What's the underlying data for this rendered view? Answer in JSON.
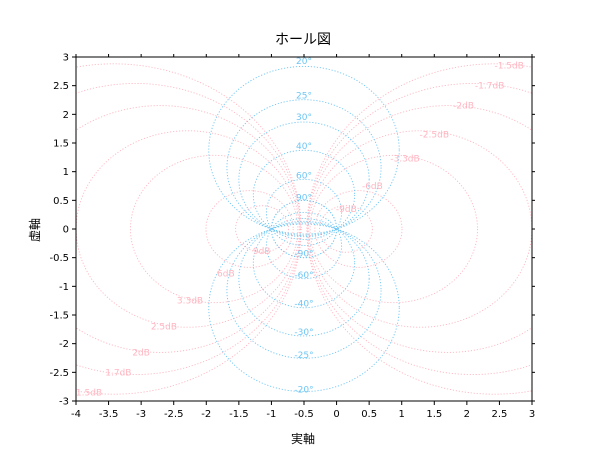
{
  "chart_data": {
    "type": "line",
    "title": "ホール図",
    "xlabel": "実軸",
    "ylabel": "虚軸",
    "xlim": [
      -4,
      3
    ],
    "ylim": [
      -3,
      3
    ],
    "x_ticks": [
      "-4",
      "-3.5",
      "-3",
      "-2.5",
      "-2",
      "-1.5",
      "-1",
      "-0.5",
      "0",
      "0.5",
      "1",
      "1.5",
      "2",
      "2.5",
      "3"
    ],
    "y_ticks": [
      "-3",
      "-2.5",
      "-2",
      "-1.5",
      "-1",
      "-0.5",
      "0",
      "0.5",
      "1",
      "1.5",
      "2",
      "2.5",
      "3"
    ],
    "grid": false,
    "m_circles": {
      "color": "#ffb6c1",
      "gains_db": [
        -1.5,
        -1.7,
        -2,
        -2.5,
        -3.3,
        -6,
        -9,
        9,
        6,
        3.3,
        2.5,
        2,
        1.7,
        1.5
      ],
      "labels_upper": [
        "-1.5dB",
        "-1.7dB",
        "-2dB",
        "-2.5dB",
        "-3.3dB",
        "-6dB",
        "-9dB"
      ],
      "labels_lower": [
        "9dB",
        "6dB",
        "3.3dB",
        "2.5dB",
        "2dB",
        "1.7dB",
        "1.5dB"
      ]
    },
    "n_circles": {
      "color": "#6ec6f5",
      "phases_deg": [
        20,
        25,
        30,
        40,
        60,
        90,
        -90,
        -60,
        -40,
        -30,
        -25,
        -20
      ],
      "labels": [
        "20°",
        "25°",
        "30°",
        "40°",
        "60°",
        "90°",
        "-90°",
        "-60°",
        "-40°",
        "-30°",
        "-25°",
        "-20°"
      ]
    }
  }
}
